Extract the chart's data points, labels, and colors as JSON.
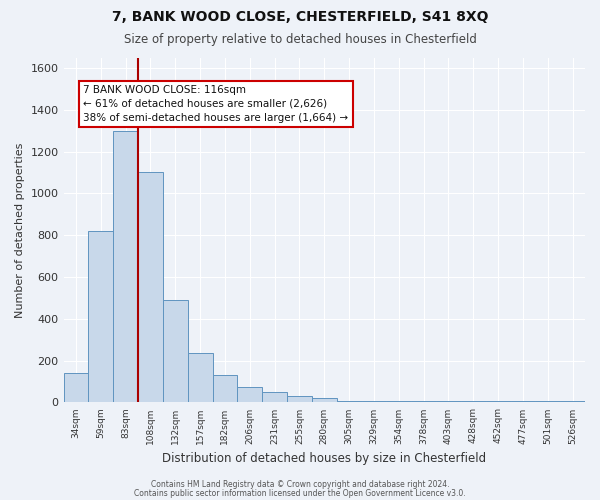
{
  "title": "7, BANK WOOD CLOSE, CHESTERFIELD, S41 8XQ",
  "subtitle": "Size of property relative to detached houses in Chesterfield",
  "xlabel": "Distribution of detached houses by size in Chesterfield",
  "ylabel": "Number of detached properties",
  "bar_values": [
    140,
    820,
    1300,
    1100,
    490,
    235,
    130,
    75,
    50,
    30,
    20,
    5,
    5,
    5,
    5,
    5,
    5,
    5,
    5,
    5,
    5
  ],
  "x_tick_labels": [
    "34sqm",
    "59sqm",
    "83sqm",
    "108sqm",
    "132sqm",
    "157sqm",
    "182sqm",
    "206sqm",
    "231sqm",
    "255sqm",
    "280sqm",
    "305sqm",
    "329sqm",
    "354sqm",
    "378sqm",
    "403sqm",
    "428sqm",
    "452sqm",
    "477sqm",
    "501sqm",
    "526sqm"
  ],
  "bar_color": "#c8d8ea",
  "bar_edge_color": "#6094c0",
  "vline_x": 2.5,
  "vline_color": "#aa0000",
  "ylim": [
    0,
    1650
  ],
  "yticks": [
    0,
    200,
    400,
    600,
    800,
    1000,
    1200,
    1400,
    1600
  ],
  "annotation_title": "7 BANK WOOD CLOSE: 116sqm",
  "annotation_line1": "← 61% of detached houses are smaller (2,626)",
  "annotation_line2": "38% of semi-detached houses are larger (1,664) →",
  "annotation_box_color": "#ffffff",
  "annotation_box_edge": "#cc0000",
  "footer1": "Contains HM Land Registry data © Crown copyright and database right 2024.",
  "footer2": "Contains public sector information licensed under the Open Government Licence v3.0.",
  "background_color": "#eef2f8",
  "grid_color": "#ffffff"
}
